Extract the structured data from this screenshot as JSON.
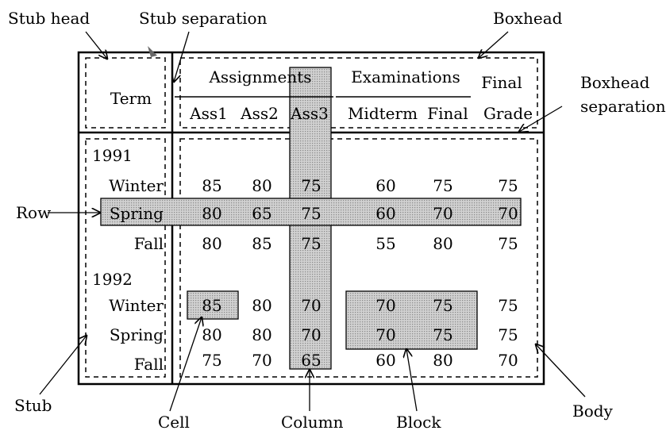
{
  "labels": {
    "stub_head": "Stub head",
    "stub_separation": "Stub separation",
    "boxhead": "Boxhead",
    "boxhead_separation_1": "Boxhead",
    "boxhead_separation_2": "separation",
    "row": "Row",
    "stub": "Stub",
    "cell": "Cell",
    "column": "Column",
    "block": "Block",
    "body": "Body"
  },
  "table": {
    "stub_header": "Term",
    "group_assignments": "Assignments",
    "group_examinations": "Examinations",
    "final_grade_1": "Final",
    "final_grade_2": "Grade",
    "columns": [
      "Ass1",
      "Ass2",
      "Ass3",
      "Midterm",
      "Final"
    ],
    "years": [
      "1991",
      "1992"
    ],
    "terms": [
      "Winter",
      "Spring",
      "Fall",
      "Winter",
      "Spring",
      "Fall"
    ],
    "rows": [
      [
        "85",
        "80",
        "75",
        "60",
        "75",
        "75"
      ],
      [
        "80",
        "65",
        "75",
        "60",
        "70",
        "70"
      ],
      [
        "80",
        "85",
        "75",
        "55",
        "80",
        "75"
      ],
      [
        "85",
        "80",
        "70",
        "70",
        "75",
        "75"
      ],
      [
        "80",
        "80",
        "70",
        "70",
        "75",
        "75"
      ],
      [
        "75",
        "70",
        "65",
        "60",
        "80",
        "70"
      ]
    ]
  }
}
